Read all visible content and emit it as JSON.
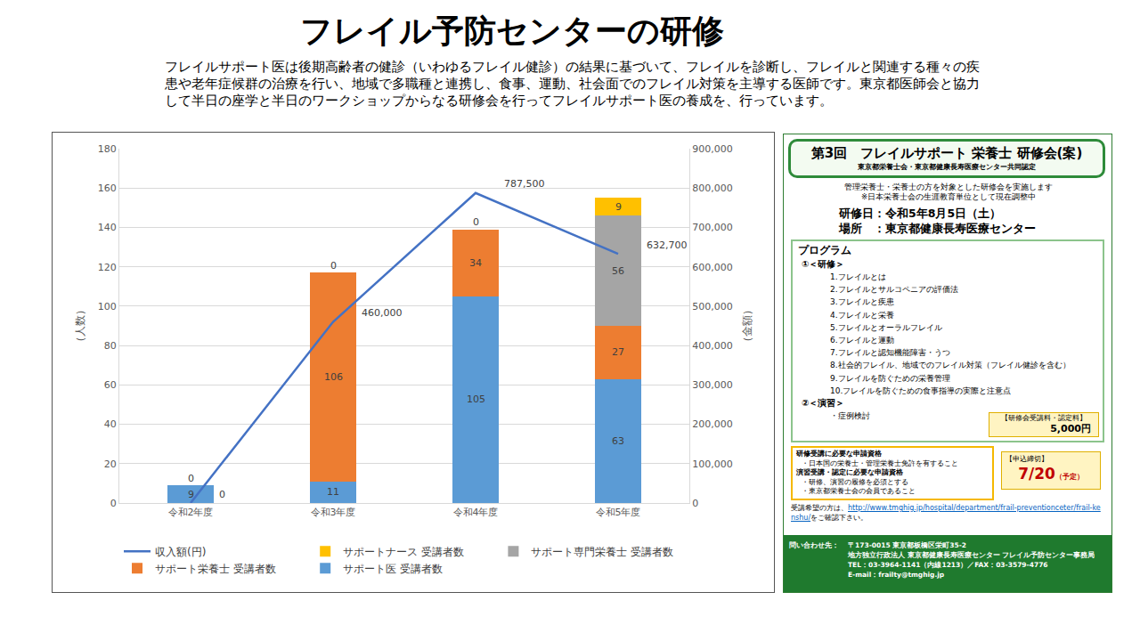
{
  "title": "フレイル予防センターの研修",
  "description": "フレイルサポート医は後期高齢者の健診（いわゆるフレイル健診）の結果に基づいて、フレイルを診断し、フレイルと関連する種々の疾患や老年症候群の治療を行い、地域で多職種と連携し、食事、運動、社会面でのフレイル対策を主導する医師です。東京都医師会と協力して半日の座学と半日のワークショップからなる研修会を行ってフレイルサポート医の養成を、行っています。",
  "chart_data": {
    "type": "bar",
    "stacked": true,
    "data_labels": true,
    "grid": true,
    "legend": "bottom",
    "y_label": "（人数）",
    "y2_label": "（金額）",
    "categories": [
      "令和2年度",
      "令和3年度",
      "令和4年度",
      "令和5年度"
    ],
    "ylim": [
      0,
      180
    ],
    "yticks": [
      0,
      20,
      40,
      60,
      80,
      100,
      120,
      140,
      160,
      180
    ],
    "y2lim": [
      0,
      900000
    ],
    "y2ticks": [
      0,
      {
        "value": 100000,
        "label": "100,000"
      },
      {
        "value": 200000,
        "label": "200,000"
      },
      {
        "value": 300000,
        "label": "300,000"
      },
      {
        "value": 400000,
        "label": "400,000"
      },
      {
        "value": 500000,
        "label": "500,000"
      },
      {
        "value": 600000,
        "label": "600,000"
      },
      {
        "value": 700000,
        "label": "700,000"
      },
      {
        "value": 800000,
        "label": "800,000"
      },
      {
        "value": 900000,
        "label": "900,000"
      }
    ],
    "series": [
      {
        "name": "サポート医 受講者数",
        "type": "bar",
        "color": "#5b9bd5",
        "values": [
          9,
          11,
          105,
          63
        ]
      },
      {
        "name": "サポート栄養士 受講者数",
        "type": "bar",
        "color": "#ed7d31",
        "values": [
          0,
          106,
          34,
          27
        ]
      },
      {
        "name": "サポート専門栄養士 受講者数",
        "type": "bar",
        "color": "#a5a5a5",
        "values": [
          null,
          0,
          0,
          56
        ]
      },
      {
        "name": "サポートナース 受講者数",
        "type": "bar",
        "color": "#ffc000",
        "values": [
          null,
          null,
          null,
          9
        ]
      },
      {
        "name": "収入額(円)",
        "type": "line",
        "axis": "y2",
        "color": "#4472c4",
        "values": [
          0,
          460000,
          787500,
          632700
        ],
        "value_labels": [
          "0",
          "460,000",
          "787,500",
          "632,700"
        ]
      }
    ]
  },
  "flyer": {
    "title": "第3回　フレイルサポート 栄養士 研修会(案)",
    "subtitle": "東京都栄養士会・東京都健康長寿医療センター共同認定",
    "intro": [
      "管理栄養士・栄養士の方を対象とした研修会を実施します",
      "※日本栄養士会の生涯教育単位として現在調整中"
    ],
    "date": "研修日：令和5年8月5日（土）",
    "place": "場所　：東京都健康長寿医療センター",
    "program": {
      "heading": "プログラム",
      "sections": [
        {
          "heading": "①＜研修＞",
          "items": [
            "1.フレイルとは",
            "2.フレイルとサルコペニアの評価法",
            "3.フレイルと疾患",
            "4.フレイルと栄養",
            "5.フレイルとオーラルフレイル",
            "6.フレイルと運動",
            "7.フレイルと認知機能障害・うつ",
            "8.社会的フレイル、地域でのフレイル対策（フレイル健診を含む）",
            "9.フレイルを防ぐための栄養管理",
            "10.フレイルを防ぐための食事指導の実際と注意点"
          ]
        },
        {
          "heading": "②＜演習＞",
          "items": [
            "・症例検討"
          ]
        }
      ]
    },
    "fee": {
      "label": "【研修会受講料・認定料】",
      "amount": "5,000円"
    },
    "requirements": [
      {
        "heading": "研修受講に必要な申請資格",
        "items": [
          "・日本国の栄養士・管理栄養士免許を有すること"
        ]
      },
      {
        "heading": "演習受講・認定に必要な申請資格",
        "items": [
          "・研修、演習の履修を必須とする",
          "・東京都栄養士会の会員であること"
        ]
      }
    ],
    "deadline": {
      "label": "【申込締切】",
      "date": "7/20",
      "note": "（予定）"
    },
    "url_note": [
      "受講希望の方は、",
      "http://www.tmghig.jp/hospital/department/frail-preventionceter/frail-kenshu/",
      "をご確認下さい。"
    ],
    "contact": {
      "label": "問い合わせ先：",
      "lines": [
        "〒173-0015 東京都板橋区栄町35-2",
        "地方独立行政法人 東京都健康長寿医療センター フレイル予防センター事務局",
        "TEL：03-3964-1141（内線1213）／FAX：03-3579-4776",
        "E-mail：frailty@tmghig.jp"
      ]
    }
  }
}
